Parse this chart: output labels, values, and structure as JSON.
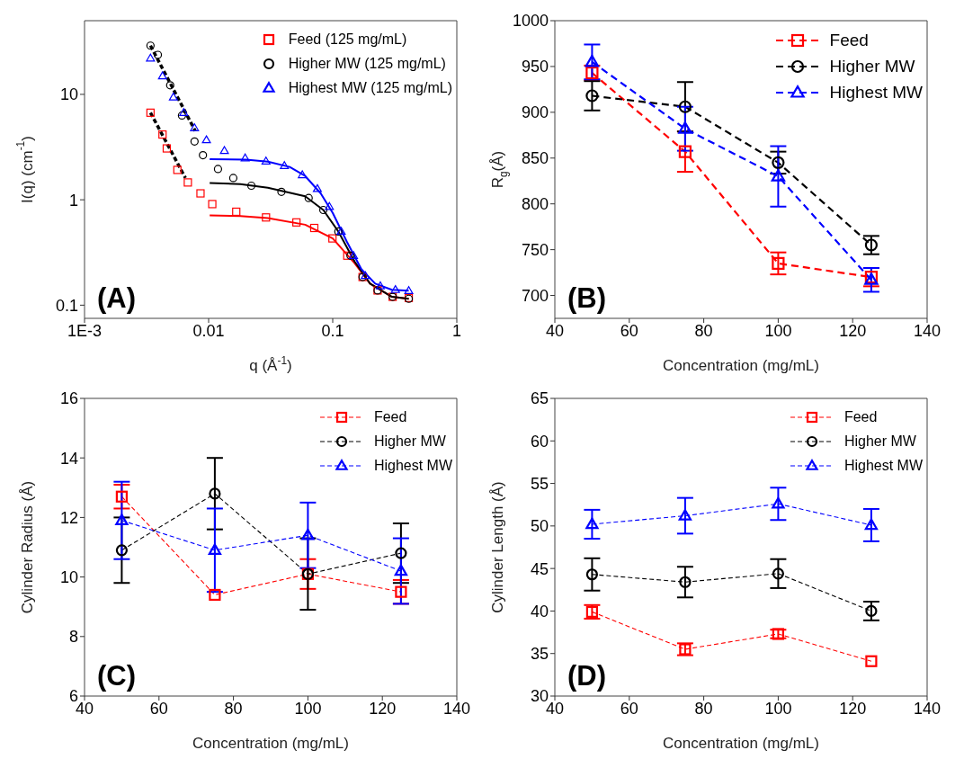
{
  "chart_data": [
    {
      "type": "scatter",
      "xlabel": "q (Å$^{-1}$)",
      "ylabel": "I(q) (cm$^{-1}$)",
      "log": "xy",
      "xlim": [
        0.001,
        1
      ],
      "ylim": [
        0.075,
        50
      ],
      "xticks": [
        {
          "value": 0.001,
          "label": "1E-3"
        },
        0.01,
        0.1,
        1
      ],
      "yticks": [
        0.1,
        1,
        10
      ],
      "legend": "top right",
      "grid": false,
      "annotations": [
        "(A)"
      ],
      "series": [
        {
          "name": "Feed (125 mg/mL)",
          "color": "#ff0000",
          "marker": "square",
          "x": [
            0.0034,
            0.00425,
            0.0046,
            0.0056,
            0.0068,
            0.0086,
            0.0107,
            0.0167,
            0.029,
            0.051,
            0.071,
            0.0995,
            0.131,
            0.174,
            0.23,
            0.304,
            0.41
          ],
          "values": [
            6.7,
            4.16,
            3.07,
            1.92,
            1.46,
            1.15,
            0.91,
            0.77,
            0.68,
            0.61,
            0.54,
            0.43,
            0.295,
            0.185,
            0.138,
            0.12,
            0.117
          ]
        },
        {
          "name": "Higher MW (125 mg/mL)",
          "color": "#000000",
          "marker": "circle",
          "x": [
            0.0034,
            0.0039,
            0.0049,
            0.0061,
            0.0077,
            0.009,
            0.0119,
            0.0158,
            0.0221,
            0.0386,
            0.064,
            0.084,
            0.111,
            0.139,
            0.174,
            0.23,
            0.304,
            0.41
          ],
          "values": [
            29,
            23.7,
            12.2,
            6.3,
            3.57,
            2.65,
            1.96,
            1.61,
            1.36,
            1.19,
            1.04,
            0.8,
            0.5,
            0.295,
            0.185,
            0.138,
            0.12,
            0.115
          ]
        },
        {
          "name": "Highest MW (125 mg/mL)",
          "color": "#0000ff",
          "marker": "triangle",
          "x": [
            0.0034,
            0.00425,
            0.0052,
            0.0063,
            0.0077,
            0.0096,
            0.0134,
            0.0197,
            0.029,
            0.0408,
            0.0569,
            0.0752,
            0.094,
            0.117,
            0.147,
            0.183,
            0.242,
            0.32,
            0.41
          ],
          "values": [
            22,
            14.9,
            9.4,
            6.7,
            4.8,
            3.69,
            2.92,
            2.48,
            2.32,
            2.1,
            1.72,
            1.27,
            0.86,
            0.5,
            0.295,
            0.19,
            0.152,
            0.14,
            0.137
          ]
        },
        {
          "type": "line",
          "color": "#ff0000",
          "marker": "none",
          "line_style": "solid",
          "x": [
            0.0102,
            0.018,
            0.03,
            0.06,
            0.1,
            0.15,
            0.2,
            0.3,
            0.41
          ],
          "values": [
            0.71,
            0.7,
            0.67,
            0.58,
            0.43,
            0.25,
            0.16,
            0.12,
            0.115
          ]
        },
        {
          "type": "line",
          "color": "#000000",
          "marker": "none",
          "line_style": "solid",
          "x": [
            0.0102,
            0.018,
            0.03,
            0.06,
            0.084,
            0.111,
            0.15,
            0.2,
            0.3,
            0.41
          ],
          "values": [
            1.44,
            1.41,
            1.3,
            1.08,
            0.8,
            0.5,
            0.26,
            0.16,
            0.12,
            0.115
          ]
        },
        {
          "type": "line",
          "color": "#0000ff",
          "marker": "none",
          "line_style": "solid",
          "x": [
            0.0102,
            0.02,
            0.03,
            0.045,
            0.06,
            0.08,
            0.1,
            0.13,
            0.17,
            0.22,
            0.3,
            0.41
          ],
          "values": [
            2.43,
            2.4,
            2.3,
            2.05,
            1.68,
            1.15,
            0.75,
            0.4,
            0.22,
            0.16,
            0.14,
            0.137
          ]
        },
        {
          "type": "line",
          "color": "#000000",
          "marker": "none",
          "line_style": "dashed",
          "x": [
            0.0034,
            0.0065
          ],
          "values": [
            6.7,
            1.61
          ]
        },
        {
          "type": "line",
          "color": "#000000",
          "marker": "none",
          "line_style": "dashed",
          "x": [
            0.0034,
            0.0078
          ],
          "values": [
            29,
            4.5
          ]
        }
      ]
    },
    {
      "type": "line",
      "xlabel": "Concentration (mg/mL)",
      "ylabel": "R$_{g}$(Å)",
      "xlim": [
        40,
        140
      ],
      "ylim": [
        675,
        1000
      ],
      "xticks": [
        40,
        60,
        80,
        100,
        120,
        140
      ],
      "yticks": [
        700,
        750,
        800,
        850,
        900,
        950,
        1000
      ],
      "legend": "top right",
      "grid": false,
      "annotations": [
        "(B)"
      ],
      "x": [
        50,
        75,
        100,
        125
      ],
      "series": [
        {
          "name": "Feed",
          "color": "#ff0000",
          "marker": "square",
          "line_style": "dashed",
          "values": [
            943,
            857,
            735,
            720
          ],
          "errors": [
            8,
            22,
            12,
            10
          ]
        },
        {
          "name": "Higher MW",
          "color": "#000000",
          "marker": "circle",
          "line_style": "dashed",
          "values": [
            918,
            906,
            845,
            755
          ],
          "errors": [
            16,
            27,
            12,
            10
          ]
        },
        {
          "name": "Highest MW",
          "color": "#0000ff",
          "marker": "triangle",
          "line_style": "dashed",
          "values": [
            955,
            882,
            830,
            717
          ],
          "errors": [
            19,
            24,
            33,
            13
          ]
        }
      ]
    },
    {
      "type": "line",
      "xlabel": "Concentration (mg/mL)",
      "ylabel": "Cylinder Radius (Å)",
      "xlim": [
        40,
        140
      ],
      "ylim": [
        6,
        16
      ],
      "xticks": [
        40,
        60,
        80,
        100,
        120,
        140
      ],
      "yticks": [
        6,
        8,
        10,
        12,
        14,
        16
      ],
      "legend": "top right",
      "grid": false,
      "annotations": [
        "(C)"
      ],
      "x": [
        50,
        75,
        100,
        125
      ],
      "series": [
        {
          "name": "Feed",
          "color": "#ff0000",
          "marker": "square",
          "line_style": "dashed",
          "values": [
            12.7,
            9.4,
            10.1,
            9.5
          ],
          "errors": [
            0.4,
            null,
            0.5,
            0.4
          ]
        },
        {
          "name": "Higher MW",
          "color": "#000000",
          "marker": "circle",
          "line_style": "dashed",
          "values": [
            10.9,
            12.8,
            10.1,
            10.8
          ],
          "errors": [
            1.1,
            1.2,
            1.2,
            1.0
          ]
        },
        {
          "name": "Highest MW",
          "color": "#0000ff",
          "marker": "triangle",
          "line_style": "dashed",
          "values": [
            11.9,
            10.9,
            11.4,
            10.2
          ],
          "errors": [
            1.3,
            1.4,
            1.1,
            1.1
          ]
        }
      ]
    },
    {
      "type": "line",
      "xlabel": "Concentration (mg/mL)",
      "ylabel": "Cylinder Length (Å)",
      "xlim": [
        40,
        140
      ],
      "ylim": [
        30,
        65
      ],
      "xticks": [
        40,
        60,
        80,
        100,
        120,
        140
      ],
      "yticks": [
        30,
        35,
        40,
        45,
        50,
        55,
        60,
        65
      ],
      "legend": "top right",
      "grid": false,
      "annotations": [
        "(D)"
      ],
      "x": [
        50,
        75,
        100,
        125
      ],
      "series": [
        {
          "name": "Feed",
          "color": "#ff0000",
          "marker": "square",
          "line_style": "dashed",
          "values": [
            39.9,
            35.5,
            37.3,
            34.1
          ],
          "errors": [
            0.8,
            0.7,
            0.5,
            null
          ]
        },
        {
          "name": "Higher MW",
          "color": "#000000",
          "marker": "circle",
          "line_style": "dashed",
          "values": [
            44.3,
            43.4,
            44.4,
            40.0
          ],
          "errors": [
            1.9,
            1.8,
            1.7,
            1.1
          ]
        },
        {
          "name": "Highest MW",
          "color": "#0000ff",
          "marker": "triangle",
          "line_style": "dashed",
          "values": [
            50.2,
            51.2,
            52.6,
            50.1
          ],
          "errors": [
            1.7,
            2.1,
            1.9,
            1.9
          ]
        }
      ]
    }
  ]
}
